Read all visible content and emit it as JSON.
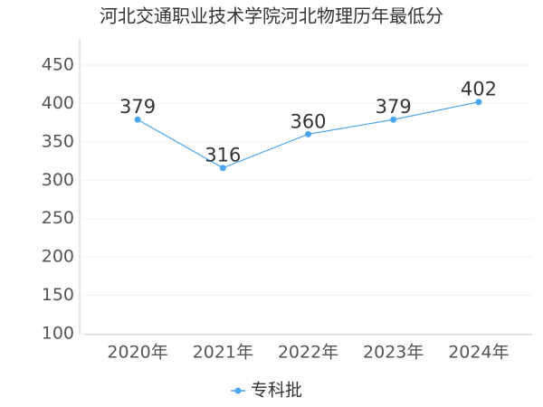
{
  "chart_data": {
    "type": "line",
    "title": "河北交通职业技术学院河北物理历年最低分",
    "categories": [
      "2020年",
      "2021年",
      "2022年",
      "2023年",
      "2024年"
    ],
    "series": [
      {
        "name": "专科批",
        "color": "#4da6f0",
        "values": [
          379,
          316,
          360,
          379,
          402
        ]
      }
    ],
    "ylim": [
      100,
      450
    ],
    "yticks": [
      100,
      150,
      200,
      250,
      300,
      350,
      400,
      450
    ],
    "grid": true,
    "legend": "bottom"
  }
}
